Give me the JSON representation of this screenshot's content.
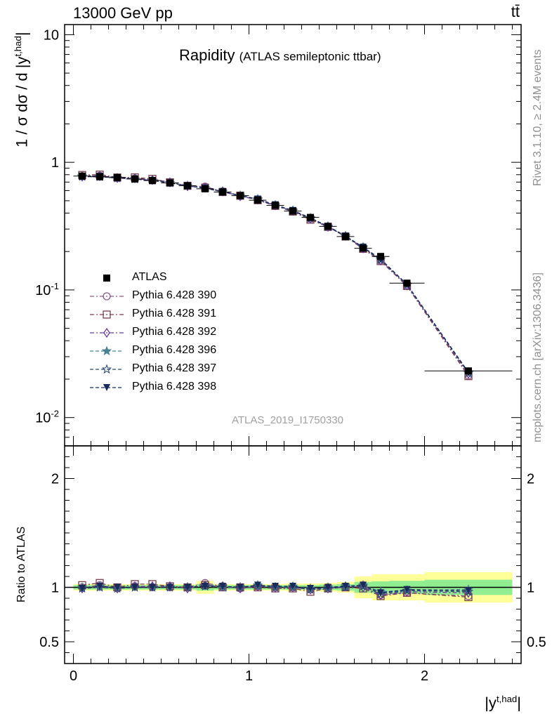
{
  "header": {
    "energy_label": "13000 GeV pp",
    "process_label": "tt̄"
  },
  "title": {
    "main": "Rapidity",
    "sub": "(ATLAS semileptonic ttbar)"
  },
  "watermark": "ATLAS_2019_I1750330",
  "side_text": {
    "rivet": "Rivet 3.1.10, ≥ 2.4M events",
    "mcplots": "mcplots.cern.ch [arXiv:1306.3436]"
  },
  "axes": {
    "ylabel_top": "1 / σ dσ / d |y^{t,had}|",
    "ylabel_bottom": "Ratio to ATLAS",
    "xlabel": "|y^{t,had}|"
  },
  "legend": [
    {
      "label": "ATLAS",
      "color": "#000000",
      "marker": "square-filled"
    },
    {
      "label": "Pythia 6.428 390",
      "color": "#8a5a8a",
      "marker": "circle-open"
    },
    {
      "label": "Pythia 6.428 391",
      "color": "#7a4050",
      "marker": "square-open"
    },
    {
      "label": "Pythia 6.428 392",
      "color": "#6a3a9a",
      "marker": "diamond-open"
    },
    {
      "label": "Pythia 6.428 396",
      "color": "#4a8090",
      "marker": "star-filled"
    },
    {
      "label": "Pythia 6.428 397",
      "color": "#304a70",
      "marker": "star-open"
    },
    {
      "label": "Pythia 6.428 398",
      "color": "#1a2a5a",
      "marker": "triangle-down-filled"
    }
  ],
  "chart_data": {
    "type": "line",
    "x": [
      0.05,
      0.15,
      0.25,
      0.35,
      0.45,
      0.55,
      0.65,
      0.75,
      0.85,
      0.95,
      1.05,
      1.15,
      1.25,
      1.35,
      1.45,
      1.55,
      1.65,
      1.75,
      1.9,
      2.25
    ],
    "x_edges": [
      0.0,
      0.1,
      0.2,
      0.3,
      0.4,
      0.5,
      0.6,
      0.7,
      0.8,
      0.9,
      1.0,
      1.1,
      1.2,
      1.3,
      1.4,
      1.5,
      1.6,
      1.7,
      1.8,
      2.0,
      2.5
    ],
    "xlim": [
      -0.05,
      2.55
    ],
    "ylim_top": [
      0.006,
      12
    ],
    "yscale_top": "log",
    "ylim_bottom": [
      0.3,
      2.3
    ],
    "x_ticks": [
      "0",
      "1",
      "2"
    ],
    "y_ticks_top": [
      "10^{-2}",
      "10^{-1}",
      "1",
      "10"
    ],
    "y_ticks_bottom": [
      "0.5",
      "1",
      "2"
    ],
    "data": [
      0.78,
      0.77,
      0.76,
      0.74,
      0.72,
      0.69,
      0.655,
      0.62,
      0.585,
      0.548,
      0.505,
      0.46,
      0.415,
      0.37,
      0.315,
      0.262,
      0.212,
      0.183,
      0.113,
      0.0232
    ],
    "band_inner": [
      0.02,
      0.02,
      0.02,
      0.02,
      0.02,
      0.02,
      0.02,
      0.03,
      0.02,
      0.02,
      0.02,
      0.02,
      0.02,
      0.02,
      0.025,
      0.03,
      0.05,
      0.055,
      0.06,
      0.07
    ],
    "band_outer": [
      0.03,
      0.03,
      0.03,
      0.03,
      0.03,
      0.03,
      0.03,
      0.06,
      0.03,
      0.03,
      0.03,
      0.03,
      0.035,
      0.035,
      0.04,
      0.05,
      0.1,
      0.12,
      0.12,
      0.14
    ],
    "series": [
      {
        "name": "Pythia 6.428 390",
        "ratio": [
          1.0,
          1.02,
          0.99,
          1.01,
          1.0,
          1.0,
          1.0,
          1.04,
          1.01,
          0.99,
          1.01,
          1.0,
          1.0,
          0.98,
          1.0,
          1.0,
          1.02,
          0.93,
          0.95,
          0.92
        ]
      },
      {
        "name": "Pythia 6.428 391",
        "ratio": [
          1.02,
          1.04,
          1.0,
          1.03,
          1.03,
          1.01,
          1.0,
          1.02,
          1.0,
          1.0,
          1.0,
          0.99,
          0.99,
          0.96,
          0.99,
          1.0,
          0.99,
          0.92,
          0.95,
          0.91
        ]
      },
      {
        "name": "Pythia 6.428 392",
        "ratio": [
          0.99,
          1.01,
          0.99,
          1.01,
          1.01,
          1.01,
          0.99,
          1.02,
          1.01,
          0.99,
          1.01,
          1.0,
          1.0,
          0.98,
          0.99,
          1.01,
          1.0,
          0.93,
          0.96,
          0.95
        ]
      },
      {
        "name": "Pythia 6.428 396",
        "ratio": [
          1.0,
          1.01,
          0.99,
          1.0,
          1.0,
          1.0,
          1.0,
          1.01,
          1.0,
          1.0,
          1.02,
          1.0,
          1.01,
          0.99,
          1.0,
          1.01,
          1.02,
          0.96,
          0.97,
          0.98
        ]
      },
      {
        "name": "Pythia 6.428 397",
        "ratio": [
          0.99,
          1.0,
          0.99,
          1.0,
          1.0,
          1.0,
          1.0,
          1.01,
          1.01,
          1.0,
          1.01,
          1.0,
          1.0,
          0.98,
          0.99,
          1.0,
          1.01,
          0.94,
          0.97,
          0.96
        ]
      },
      {
        "name": "Pythia 6.428 398",
        "ratio": [
          0.99,
          1.01,
          1.0,
          1.0,
          1.0,
          1.0,
          1.0,
          1.01,
          1.01,
          1.0,
          1.02,
          1.01,
          1.01,
          0.99,
          1.0,
          1.01,
          1.02,
          0.95,
          0.98,
          0.97
        ]
      }
    ]
  }
}
